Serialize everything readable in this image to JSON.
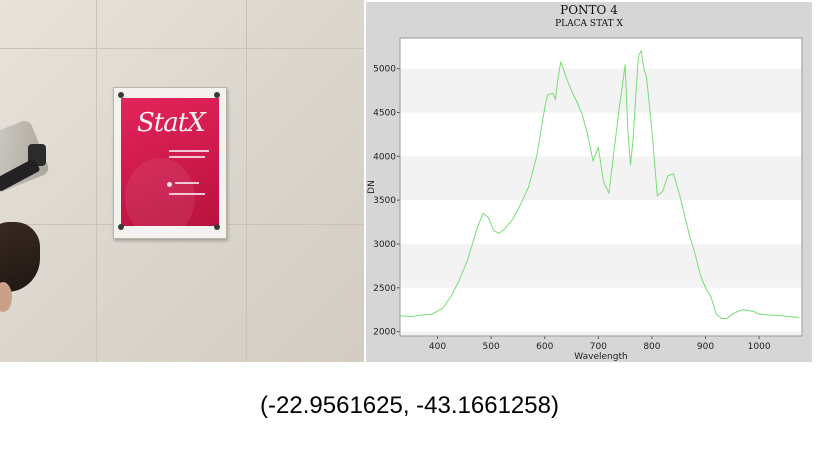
{
  "photo": {
    "brand_text": "StatX",
    "plaque_color": "#d21c4f"
  },
  "chart_data": {
    "type": "line",
    "title": "PONTO 4",
    "subtitle": "PLACA STAT X",
    "xlabel": "Wavelength",
    "ylabel": "DN",
    "xlim": [
      330,
      1080
    ],
    "ylim": [
      1950,
      5350
    ],
    "xticks": [
      400,
      500,
      600,
      700,
      800,
      900,
      1000
    ],
    "yticks": [
      2000,
      2500,
      3000,
      3500,
      4000,
      4500,
      5000
    ],
    "grid": "alternating horizontal bands",
    "series": [
      {
        "color": "#77dd77",
        "x": [
          330,
          350,
          370,
          390,
          410,
          425,
          440,
          455,
          465,
          475,
          485,
          495,
          505,
          515,
          525,
          540,
          555,
          570,
          585,
          600,
          605,
          615,
          620,
          625,
          630,
          640,
          650,
          660,
          670,
          680,
          690,
          700,
          710,
          720,
          730,
          740,
          745,
          750,
          755,
          760,
          765,
          770,
          775,
          780,
          785,
          790,
          800,
          810,
          820,
          830,
          840,
          850,
          860,
          870,
          880,
          890,
          900,
          910,
          920,
          930,
          940,
          950,
          960,
          970,
          980,
          990,
          1000,
          1020,
          1040,
          1060,
          1075
        ],
        "y": [
          2180,
          2170,
          2190,
          2200,
          2270,
          2400,
          2580,
          2800,
          3000,
          3200,
          3350,
          3300,
          3150,
          3120,
          3170,
          3280,
          3450,
          3650,
          4000,
          4550,
          4700,
          4720,
          4650,
          4900,
          5080,
          4900,
          4750,
          4620,
          4480,
          4250,
          3950,
          4100,
          3700,
          3580,
          4100,
          4600,
          4800,
          5050,
          4300,
          3900,
          4200,
          4700,
          5150,
          5200,
          5000,
          4900,
          4300,
          3550,
          3600,
          3780,
          3800,
          3600,
          3350,
          3100,
          2900,
          2650,
          2500,
          2400,
          2200,
          2150,
          2150,
          2200,
          2230,
          2250,
          2240,
          2230,
          2200,
          2190,
          2180,
          2170,
          2160
        ]
      }
    ]
  },
  "caption": {
    "coordinates": "(-22.9561625, -43.1661258)"
  }
}
